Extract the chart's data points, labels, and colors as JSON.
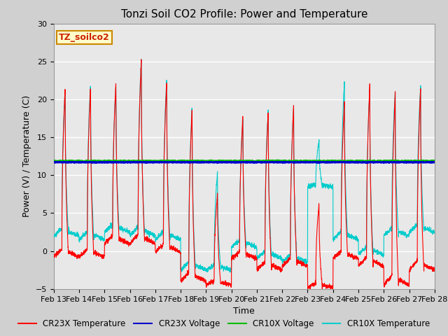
{
  "title": "Tonzi Soil CO2 Profile: Power and Temperature",
  "xlabel": "Time",
  "ylabel": "Power (V) / Temperature (C)",
  "ylim": [
    -5,
    30
  ],
  "yticks": [
    -5,
    0,
    5,
    10,
    15,
    20,
    25,
    30
  ],
  "date_labels": [
    "Feb 13",
    "Feb 14",
    "Feb 15",
    "Feb 16",
    "Feb 17",
    "Feb 18",
    "Feb 19",
    "Feb 20",
    "Feb 21",
    "Feb 22",
    "Feb 23",
    "Feb 24",
    "Feb 25",
    "Feb 26",
    "Feb 27",
    "Feb 28"
  ],
  "cr23x_voltage_val": 11.7,
  "cr10x_voltage_val": 11.85,
  "legend_entries": [
    "CR23X Temperature",
    "CR23X Voltage",
    "CR10X Voltage",
    "CR10X Temperature"
  ],
  "legend_colors": [
    "#ff0000",
    "#0000cc",
    "#00bb00",
    "#00cccc"
  ],
  "box_label": "TZ_soilco2",
  "box_facecolor": "#ffffcc",
  "box_edgecolor": "#cc8800",
  "background_color": "#d0d0d0",
  "plot_bg_color": "#e8e8e8",
  "grid_color": "#ffffff",
  "title_fontsize": 11,
  "axis_label_fontsize": 9,
  "tick_fontsize": 8
}
